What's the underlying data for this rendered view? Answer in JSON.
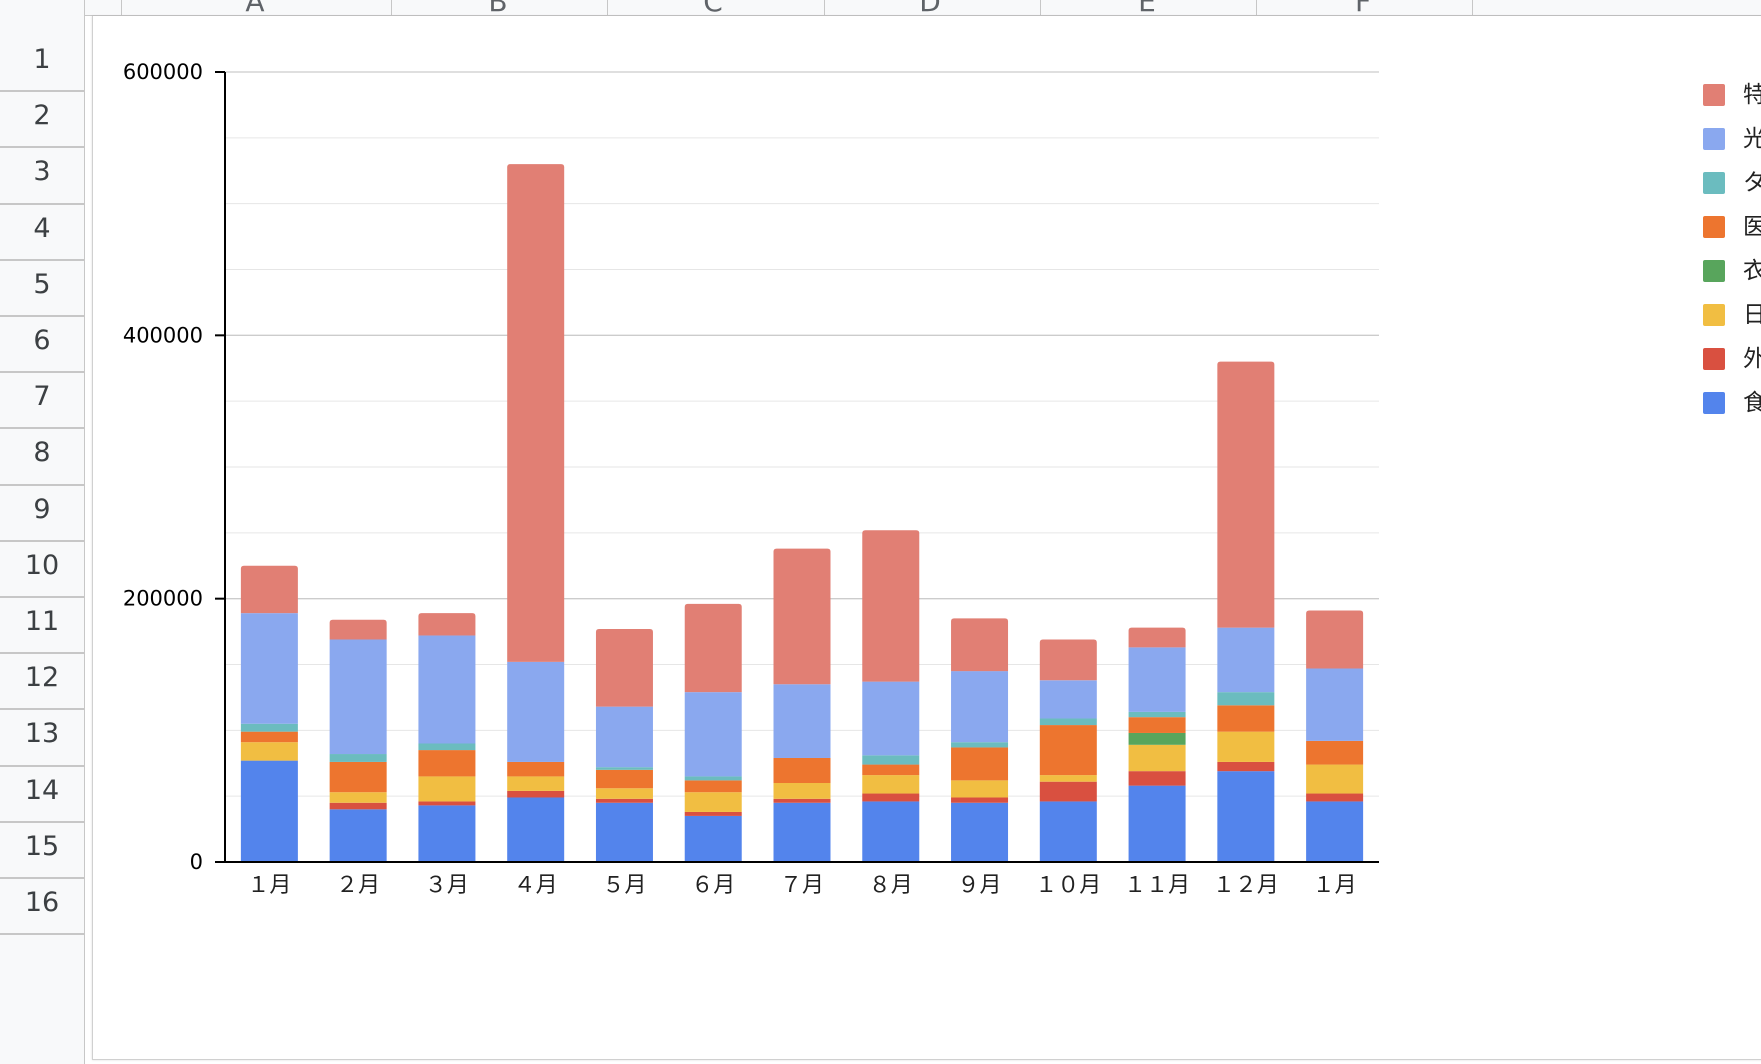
{
  "sheet": {
    "columns": [
      "A",
      "B",
      "C",
      "D",
      "E",
      "F"
    ],
    "rows": [
      "1",
      "2",
      "3",
      "4",
      "5",
      "6",
      "7",
      "8",
      "9",
      "10",
      "11",
      "12",
      "13",
      "14",
      "15",
      "16"
    ]
  },
  "chart_data": {
    "type": "bar",
    "stacked": true,
    "title": "",
    "xlabel": "",
    "ylabel": "",
    "ylim": [
      0,
      600000
    ],
    "yticks": [
      "0",
      "200000",
      "400000",
      "600000"
    ],
    "grid": true,
    "legend_position": "right",
    "categories": [
      "１月",
      "２月",
      "３月",
      "４月",
      "５月",
      "６月",
      "７月",
      "８月",
      "９月",
      "１０月",
      "１１月",
      "１２月",
      "１月"
    ],
    "series": [
      {
        "name": "食費",
        "color": "#5384ec",
        "values": [
          77000,
          40000,
          43000,
          49000,
          45000,
          35000,
          45000,
          46000,
          45000,
          46000,
          58000,
          69000,
          46000
        ]
      },
      {
        "name": "外食費",
        "color": "#d95040",
        "values": [
          0,
          5000,
          3000,
          5000,
          3000,
          3000,
          3000,
          6000,
          4000,
          15000,
          11000,
          7000,
          6000
        ]
      },
      {
        "name": "日用品",
        "color": "#f1be42",
        "values": [
          14000,
          8000,
          19000,
          11000,
          8000,
          15000,
          12000,
          14000,
          13000,
          5000,
          20000,
          23000,
          22000
        ]
      },
      {
        "name": "衣類",
        "color": "#58a55c",
        "values": [
          0,
          0,
          0,
          0,
          0,
          0,
          0,
          0,
          0,
          0,
          9000,
          0,
          0
        ]
      },
      {
        "name": "医療費",
        "color": "#ed752f",
        "values": [
          8000,
          23000,
          20000,
          11000,
          14000,
          9000,
          19000,
          8000,
          25000,
          38000,
          12000,
          20000,
          18000
        ]
      },
      {
        "name": "タバコ",
        "color": "#6bbcbf",
        "values": [
          6000,
          6000,
          5000,
          0,
          2000,
          3000,
          0,
          7000,
          4000,
          5000,
          4000,
          10000,
          0
        ]
      },
      {
        "name": "光熱費",
        "color": "#8aa8ef",
        "values": [
          84000,
          87000,
          82000,
          76000,
          46000,
          64000,
          56000,
          56000,
          54000,
          29000,
          49000,
          49000,
          55000
        ]
      },
      {
        "name": "特別",
        "color": "#e17f74",
        "values": [
          36000,
          15000,
          17000,
          378000,
          59000,
          67000,
          103000,
          115000,
          40000,
          31000,
          15000,
          202000,
          44000
        ]
      }
    ]
  }
}
